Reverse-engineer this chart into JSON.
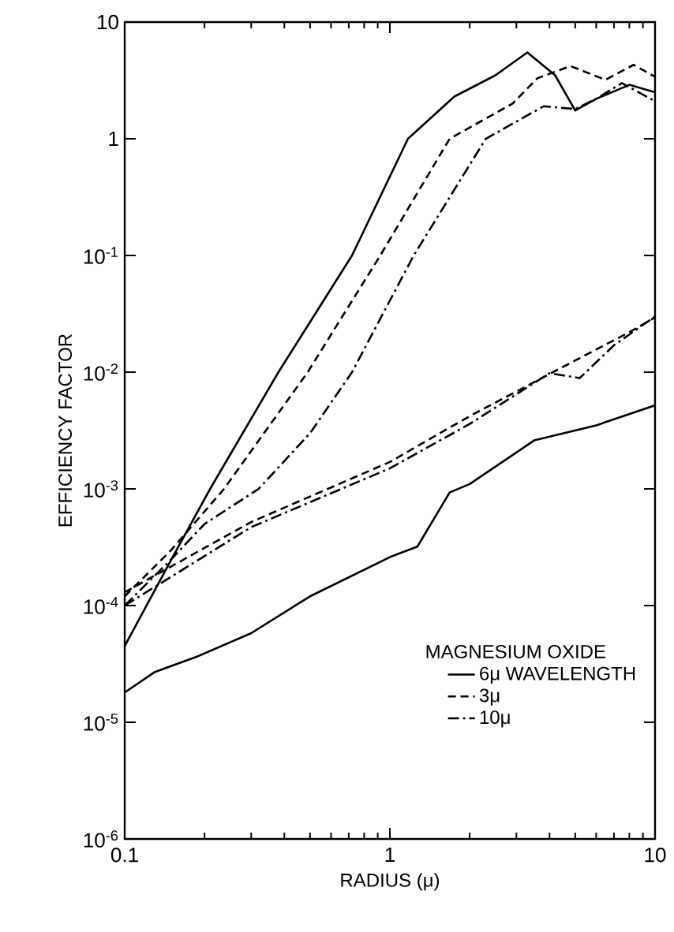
{
  "chart_data": {
    "type": "line",
    "xlabel": "RADIUS (μ)",
    "ylabel": "EFFICIENCY FACTOR",
    "legend_title": "MAGNESIUM OXIDE",
    "log": "xy",
    "legend": "bottom right",
    "xlim": [
      0.1,
      10
    ],
    "ylim": [
      1e-06,
      10
    ],
    "xticks": [
      0.1,
      1,
      10
    ],
    "yticks": [
      {
        "value": 1e-06,
        "label": "10$^{-6}$"
      },
      {
        "value": 1e-05,
        "label": "10$^{-5}$"
      },
      {
        "value": 0.0001,
        "label": "10$^{-4}$"
      },
      {
        "value": 0.001,
        "label": "10$^{-3}$"
      },
      {
        "value": 0.01,
        "label": "10$^{-2}$"
      },
      {
        "value": 0.1,
        "label": "10$^{-1}$"
      },
      1,
      10
    ],
    "series": [
      {
        "name": "6μ WAVELENGTH",
        "color": "#000000",
        "line_style": "solid",
        "x": [
          0.1,
          0.153,
          0.21,
          0.38,
          0.72,
          1.17,
          1.75,
          2.5,
          3.3,
          4.2,
          5,
          6,
          8,
          10
        ],
        "values": [
          4.5e-05,
          0.00027,
          0.001,
          0.01,
          0.1,
          1,
          2.3,
          3.5,
          5.5,
          3.5,
          1.75,
          2.2,
          2.9,
          2.5
        ]
      },
      {
        "color": "#000000",
        "line_style": "solid",
        "x": [
          0.1,
          0.13,
          0.19,
          0.3,
          0.5,
          1,
          1.27,
          1.68,
          2.0,
          3.5,
          6,
          10
        ],
        "values": [
          1.8e-05,
          2.7e-05,
          3.7e-05,
          5.8e-05,
          0.00012,
          0.00026,
          0.00032,
          0.00093,
          0.0011,
          0.0026,
          0.0035,
          0.0052
        ]
      },
      {
        "name": "3μ",
        "color": "#000000",
        "line_style": "dashed",
        "x": [
          0.1,
          0.15,
          0.237,
          0.49,
          0.92,
          1.68,
          2.9,
          3.6,
          4.8,
          6.5,
          8.3,
          10
        ],
        "values": [
          0.00012,
          0.0003,
          0.001,
          0.01,
          0.1,
          1,
          2.0,
          3.3,
          4.2,
          3.2,
          4.3,
          3.4
        ]
      },
      {
        "color": "#000000",
        "line_style": "dashed",
        "x": [
          0.1,
          0.3,
          1,
          2,
          5,
          8,
          10
        ],
        "values": [
          0.00013,
          0.00052,
          0.0017,
          0.0042,
          0.0126,
          0.022,
          0.0295
        ]
      },
      {
        "name": "10μ",
        "color": "#000000",
        "line_style": "dashdot",
        "x": [
          0.1,
          0.15,
          0.2,
          0.32,
          0.5,
          0.72,
          1.23,
          2.3,
          3.8,
          5,
          6,
          7.5,
          10
        ],
        "values": [
          0.0001,
          0.00025,
          0.0005,
          0.001,
          0.003,
          0.01,
          0.1,
          1,
          1.9,
          1.8,
          2.2,
          3.0,
          2.1
        ]
      },
      {
        "color": "#000000",
        "line_style": "dashdot",
        "x": [
          0.1,
          0.3,
          1,
          2,
          4,
          5.2,
          7,
          10
        ],
        "values": [
          0.0001,
          0.00047,
          0.0015,
          0.0036,
          0.0098,
          0.0089,
          0.017,
          0.03
        ]
      }
    ]
  }
}
